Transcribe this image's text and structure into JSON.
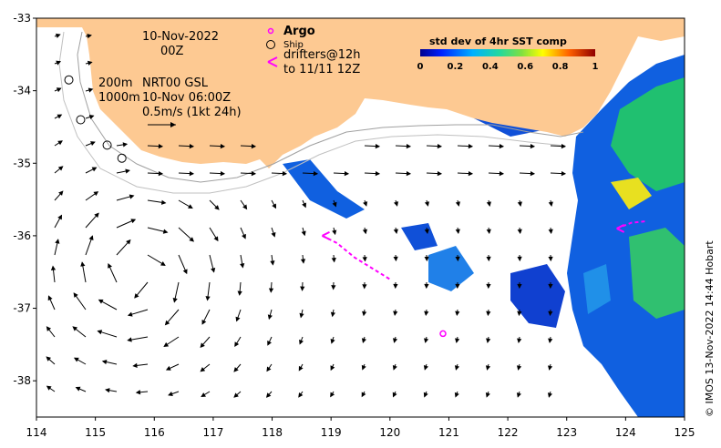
{
  "map": {
    "date_line": "10-Nov-2022",
    "time_line": "00Z",
    "depth_200": "200m",
    "depth_1000": "1000m",
    "product": "NRT00 GSL",
    "product_time": "10-Nov 06:00Z",
    "scale_label": "0.5m/s (1kt 24h)",
    "credit": "© IMOS 13-Nov-2022 14:44 Hobart"
  },
  "legend": {
    "argo": "Argo",
    "ship": "Ship",
    "drifters_line1": "drifters@12h",
    "drifters_line2": "to 11/11 12Z",
    "argo_color": "#ff00ff",
    "drifter_color": "#ff00ff"
  },
  "colorbar": {
    "title": "std dev of 4hr SST comp",
    "ticks": [
      "0",
      "0.2",
      "0.4",
      "0.6",
      "0.8",
      "1"
    ]
  },
  "axes": {
    "x_ticks": [
      "114",
      "115",
      "116",
      "117",
      "118",
      "119",
      "120",
      "121",
      "122",
      "123",
      "124",
      "125"
    ],
    "y_ticks": [
      "-33",
      "-34",
      "-35",
      "-36",
      "-37",
      "-38"
    ],
    "lon_range": [
      114,
      125
    ],
    "lat_range": [
      -38.5,
      -33
    ]
  },
  "colors": {
    "land": "#fdc992",
    "ocean": "#ffffff"
  },
  "features": {
    "argo_float": {
      "lon": 120.9,
      "lat": -37.35
    },
    "ships": [
      {
        "lon": 114.55,
        "lat": -33.85
      },
      {
        "lon": 114.75,
        "lat": -34.4
      },
      {
        "lon": 115.2,
        "lat": -34.75
      },
      {
        "lon": 115.45,
        "lat": -34.93
      }
    ],
    "drifter_tracks": [
      [
        [
          118.85,
          -36.0
        ],
        [
          119.1,
          -36.1
        ],
        [
          119.4,
          -36.3
        ],
        [
          119.7,
          -36.45
        ],
        [
          120.0,
          -36.6
        ]
      ],
      [
        [
          123.85,
          -35.9
        ],
        [
          124.1,
          -35.82
        ],
        [
          124.35,
          -35.8
        ]
      ]
    ]
  }
}
